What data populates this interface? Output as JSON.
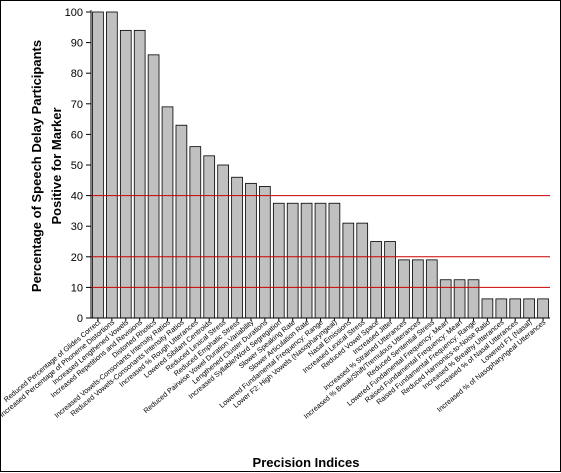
{
  "chart_data": {
    "type": "bar",
    "xlabel": "Precision Indices",
    "ylabel_line1": "Percentage of Speech Delay Participants",
    "ylabel_line2": "Positive for Marker",
    "ylim": [
      0,
      100
    ],
    "yticks": [
      0,
      10,
      20,
      30,
      40,
      50,
      60,
      70,
      80,
      90,
      100
    ],
    "reference_lines": [
      10,
      20,
      40
    ],
    "grid": false,
    "legend": "none",
    "colors": {
      "bar_fill": "#c0c0c0",
      "bar_stroke": "#000000",
      "reference_line": "#cc0000"
    },
    "categories": [
      "Reduced Percentage of Glides Correct",
      "Increased Percentage of Phoneme Distortions",
      "Increased Lengthened Vowels",
      "Increased Repetitions and Revisions",
      "Distorted Rhotics",
      "Increased Vowels-Consonants Intensity Ratios",
      "Reduced Vowels-Consonants Intensity Ratios",
      "Increased % Rough Utterances",
      "Lowered Sibilant Centroids",
      "Reduced Lexical Stress",
      "Reduced Emphatic Stress",
      "Reduced Pairwise Vowel Duration Variability",
      "Lengthened Cluster Durations",
      "Increased Syllable/Word Segregation",
      "Slower Speaking Rate",
      "Slower Articulation Rate",
      "Lowered Fundamental Frequency: Range",
      "Lower F2: High Vowels (Nasopharyngeal)",
      "Nasal Emissions",
      "Increased Lexical Stress",
      "Reduced Vowel Space",
      "Increased Jitter",
      "Increased % Strained Utterances",
      "Increased % Break/Shift/Tremulous Utterances",
      "Reduced Sentential Stress",
      "Lowered Fundamental Frequency: Mean",
      "Raised Fundamental Frequency: Mean",
      "Raised Fundamental Frequency: Range",
      "Reduced Harmonics-to-Noise Ratio",
      "Increased % Breathy Utterances",
      "Increased % of Nasal Utterances",
      "Lowered F1 (Nasal)",
      "Increased % of Nasopharyngeal Utterances"
    ],
    "values": [
      100,
      100,
      94,
      94,
      86,
      69,
      63,
      56,
      53,
      50,
      46,
      44,
      43,
      37.5,
      37.5,
      37.5,
      37.5,
      37.5,
      31,
      31,
      25,
      25,
      19,
      19,
      19,
      12.5,
      12.5,
      12.5,
      6.25,
      6.25,
      6.25,
      6.25,
      6.25
    ]
  }
}
